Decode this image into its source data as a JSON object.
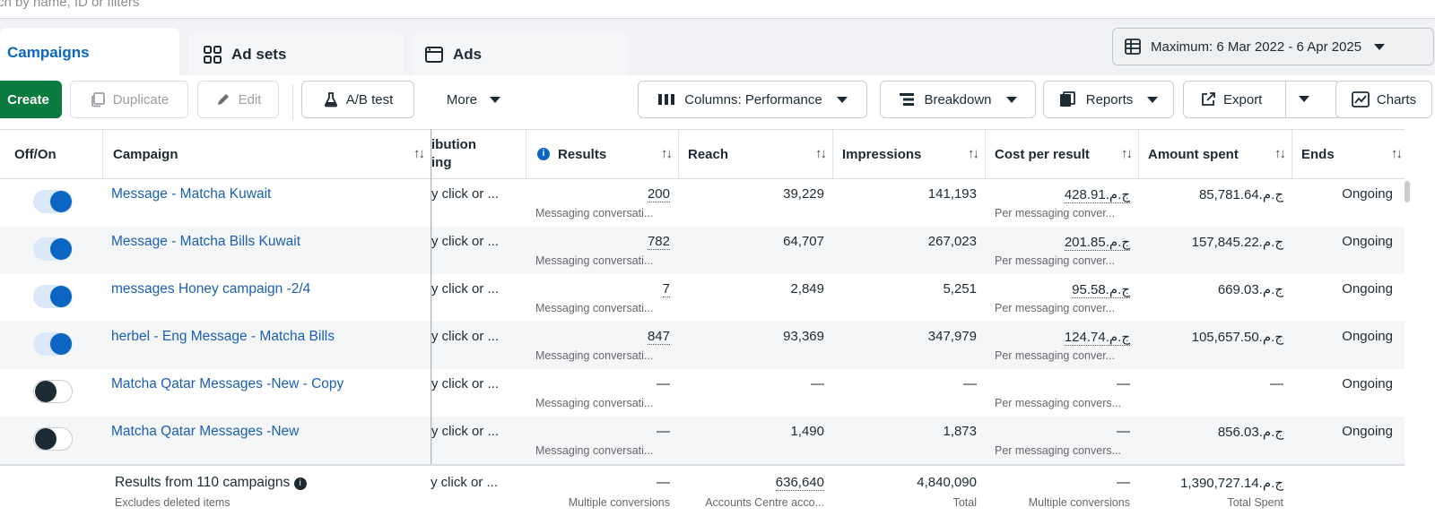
{
  "search": {
    "placeholder": "rch by name, ID or filters"
  },
  "tabs": [
    {
      "label": "Campaigns"
    },
    {
      "label": "Ad sets"
    },
    {
      "label": "Ads"
    }
  ],
  "date_range": "Maximum: 6 Mar 2022 - 6 Apr 2025",
  "toolbar": {
    "create": "Create",
    "duplicate": "Duplicate",
    "edit": "Edit",
    "ab_test": "A/B test",
    "more": "More",
    "columns": "Columns: Performance",
    "breakdown": "Breakdown",
    "reports": "Reports",
    "export": "Export",
    "charts": "Charts"
  },
  "columns": {
    "offon": "Off/On",
    "campaign": "Campaign",
    "attribution": "ibution\ning",
    "results": "Results",
    "reach": "Reach",
    "impressions": "Impressions",
    "cost": "Cost per result",
    "amount": "Amount spent",
    "ends": "Ends"
  },
  "rows": [
    {
      "on": true,
      "name": "Message - Matcha Kuwait",
      "attr": "y click or ...",
      "results": "200",
      "results_sub": "Messaging conversati...",
      "reach": "39,229",
      "impressions": "141,193",
      "cost": "428.91.ج.م",
      "cost_sub": "Per messaging conver...",
      "amount": "85,781.64.ج.م",
      "ends": "Ongoing"
    },
    {
      "on": true,
      "name": "Message - Matcha Bills Kuwait",
      "attr": "y click or ...",
      "results": "782",
      "results_sub": "Messaging conversati...",
      "reach": "64,707",
      "impressions": "267,023",
      "cost": "201.85.ج.م",
      "cost_sub": "Per messaging conver...",
      "amount": "157,845.22.ج.م",
      "ends": "Ongoing"
    },
    {
      "on": true,
      "name": "messages Honey campaign -2/4",
      "attr": "y click or ...",
      "results": "7",
      "results_sub": "Messaging conversati...",
      "reach": "2,849",
      "impressions": "5,251",
      "cost": "95.58.ج.م",
      "cost_sub": "Per messaging conver...",
      "amount": "669.03.ج.م",
      "ends": "Ongoing"
    },
    {
      "on": true,
      "name": "herbel - Eng Message - Matcha Bills",
      "attr": "y click or ...",
      "results": "847",
      "results_sub": "Messaging conversati...",
      "reach": "93,369",
      "impressions": "347,979",
      "cost": "124.74.ج.م",
      "cost_sub": "Per messaging conver...",
      "amount": "105,657.50.ج.م",
      "ends": "Ongoing"
    },
    {
      "on": false,
      "name": "Matcha Qatar Messages -New - Copy",
      "attr": "y click or ...",
      "results": "—",
      "results_sub": "Messaging conversati...",
      "reach": "—",
      "impressions": "—",
      "cost": "—",
      "cost_sub": "Per messaging convers...",
      "amount": "—",
      "ends": "Ongoing"
    },
    {
      "on": false,
      "name": "Matcha Qatar Messages -New",
      "attr": "y click or ...",
      "results": "—",
      "results_sub": "Messaging conversati...",
      "reach": "1,490",
      "impressions": "1,873",
      "cost": "—",
      "cost_sub": "Per messaging convers...",
      "amount": "856.03.ج.م",
      "ends": "Ongoing"
    }
  ],
  "footer": {
    "label": "Results from 110 campaigns",
    "sub": "Excludes deleted items",
    "attr": "y click or ...",
    "results": "—",
    "results_sub": "Multiple conversions",
    "reach": "636,640",
    "reach_sub": "Accounts Centre acco...",
    "impressions": "4,840,090",
    "impressions_sub": "Total",
    "cost": "—",
    "cost_sub": "Multiple conversions",
    "amount": "1,390,727.14.ج.م",
    "amount_sub": "Total Spent"
  },
  "colors": {
    "accent": "#0a66c2",
    "create": "#0b7a3e",
    "link": "#1a5fb4"
  }
}
